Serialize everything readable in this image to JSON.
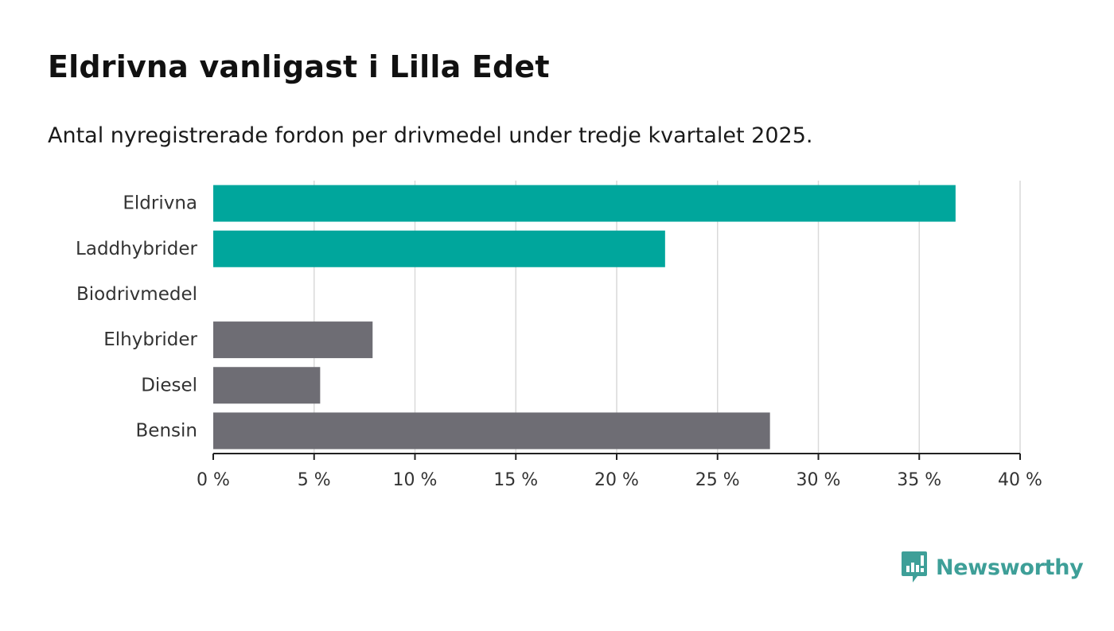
{
  "title": "Eldrivna vanligast i Lilla Edet",
  "subtitle": "Antal nyregistrerade fordon per drivmedel under tredje kvartalet 2025.",
  "brand": {
    "name": "Newsworthy",
    "color": "#3e9f98"
  },
  "colors": {
    "highlight": "#00a69c",
    "other": "#6e6d74",
    "grid": "#d9d9d9",
    "axis": "#222222"
  },
  "chart_data": {
    "type": "bar",
    "orientation": "horizontal",
    "categories": [
      "Eldrivna",
      "Laddhybrider",
      "Biodrivmedel",
      "Elhybrider",
      "Diesel",
      "Bensin"
    ],
    "values": [
      36.8,
      22.4,
      0,
      7.9,
      5.3,
      27.6
    ],
    "highlighted": [
      true,
      true,
      false,
      false,
      false,
      false
    ],
    "xlim": [
      0,
      40
    ],
    "xticks": [
      0,
      5,
      10,
      15,
      20,
      25,
      30,
      35,
      40
    ],
    "xtick_labels": [
      "0 %",
      "5 %",
      "10 %",
      "15 %",
      "20 %",
      "25 %",
      "30 %",
      "35 %",
      "40 %"
    ],
    "grid": true
  }
}
